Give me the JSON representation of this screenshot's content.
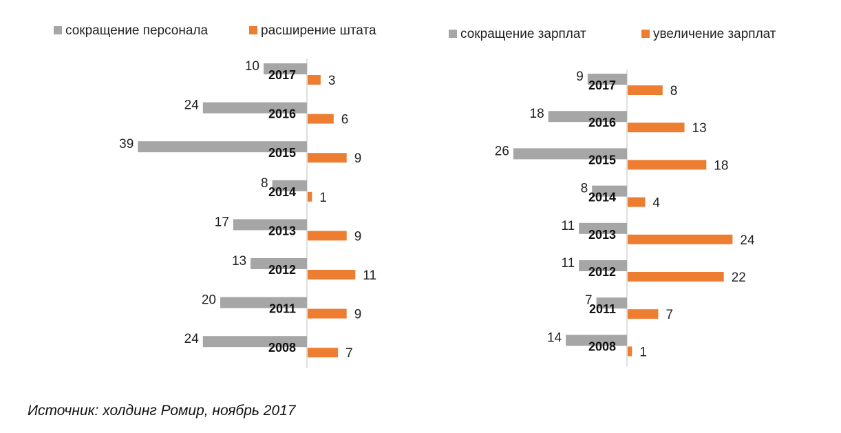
{
  "chart_data": [
    {
      "type": "bar",
      "orientation": "horizontal-diverging",
      "categories": [
        "2017",
        "2016",
        "2015",
        "2014",
        "2013",
        "2012",
        "2011",
        "2008"
      ],
      "series": [
        {
          "name": "сокращение персонала",
          "values": [
            10,
            24,
            39,
            8,
            17,
            13,
            20,
            24
          ],
          "color": "#a6a6a6",
          "side": "left"
        },
        {
          "name": "расширение штата",
          "values": [
            3,
            6,
            9,
            1,
            9,
            11,
            9,
            7
          ],
          "color": "#ed7d31",
          "side": "right"
        }
      ],
      "legend": "top"
    },
    {
      "type": "bar",
      "orientation": "horizontal-diverging",
      "categories": [
        "2017",
        "2016",
        "2015",
        "2014",
        "2013",
        "2012",
        "2011",
        "2008"
      ],
      "series": [
        {
          "name": "сокращение зарплат",
          "values": [
            9,
            18,
            26,
            8,
            11,
            11,
            7,
            14
          ],
          "color": "#a6a6a6",
          "side": "left"
        },
        {
          "name": "увеличение зарплат",
          "values": [
            8,
            13,
            18,
            4,
            24,
            22,
            7,
            1
          ],
          "color": "#ed7d31",
          "side": "right"
        }
      ],
      "legend": "top"
    }
  ],
  "source": "Источник: холдинг Ромир, ноябрь 2017"
}
